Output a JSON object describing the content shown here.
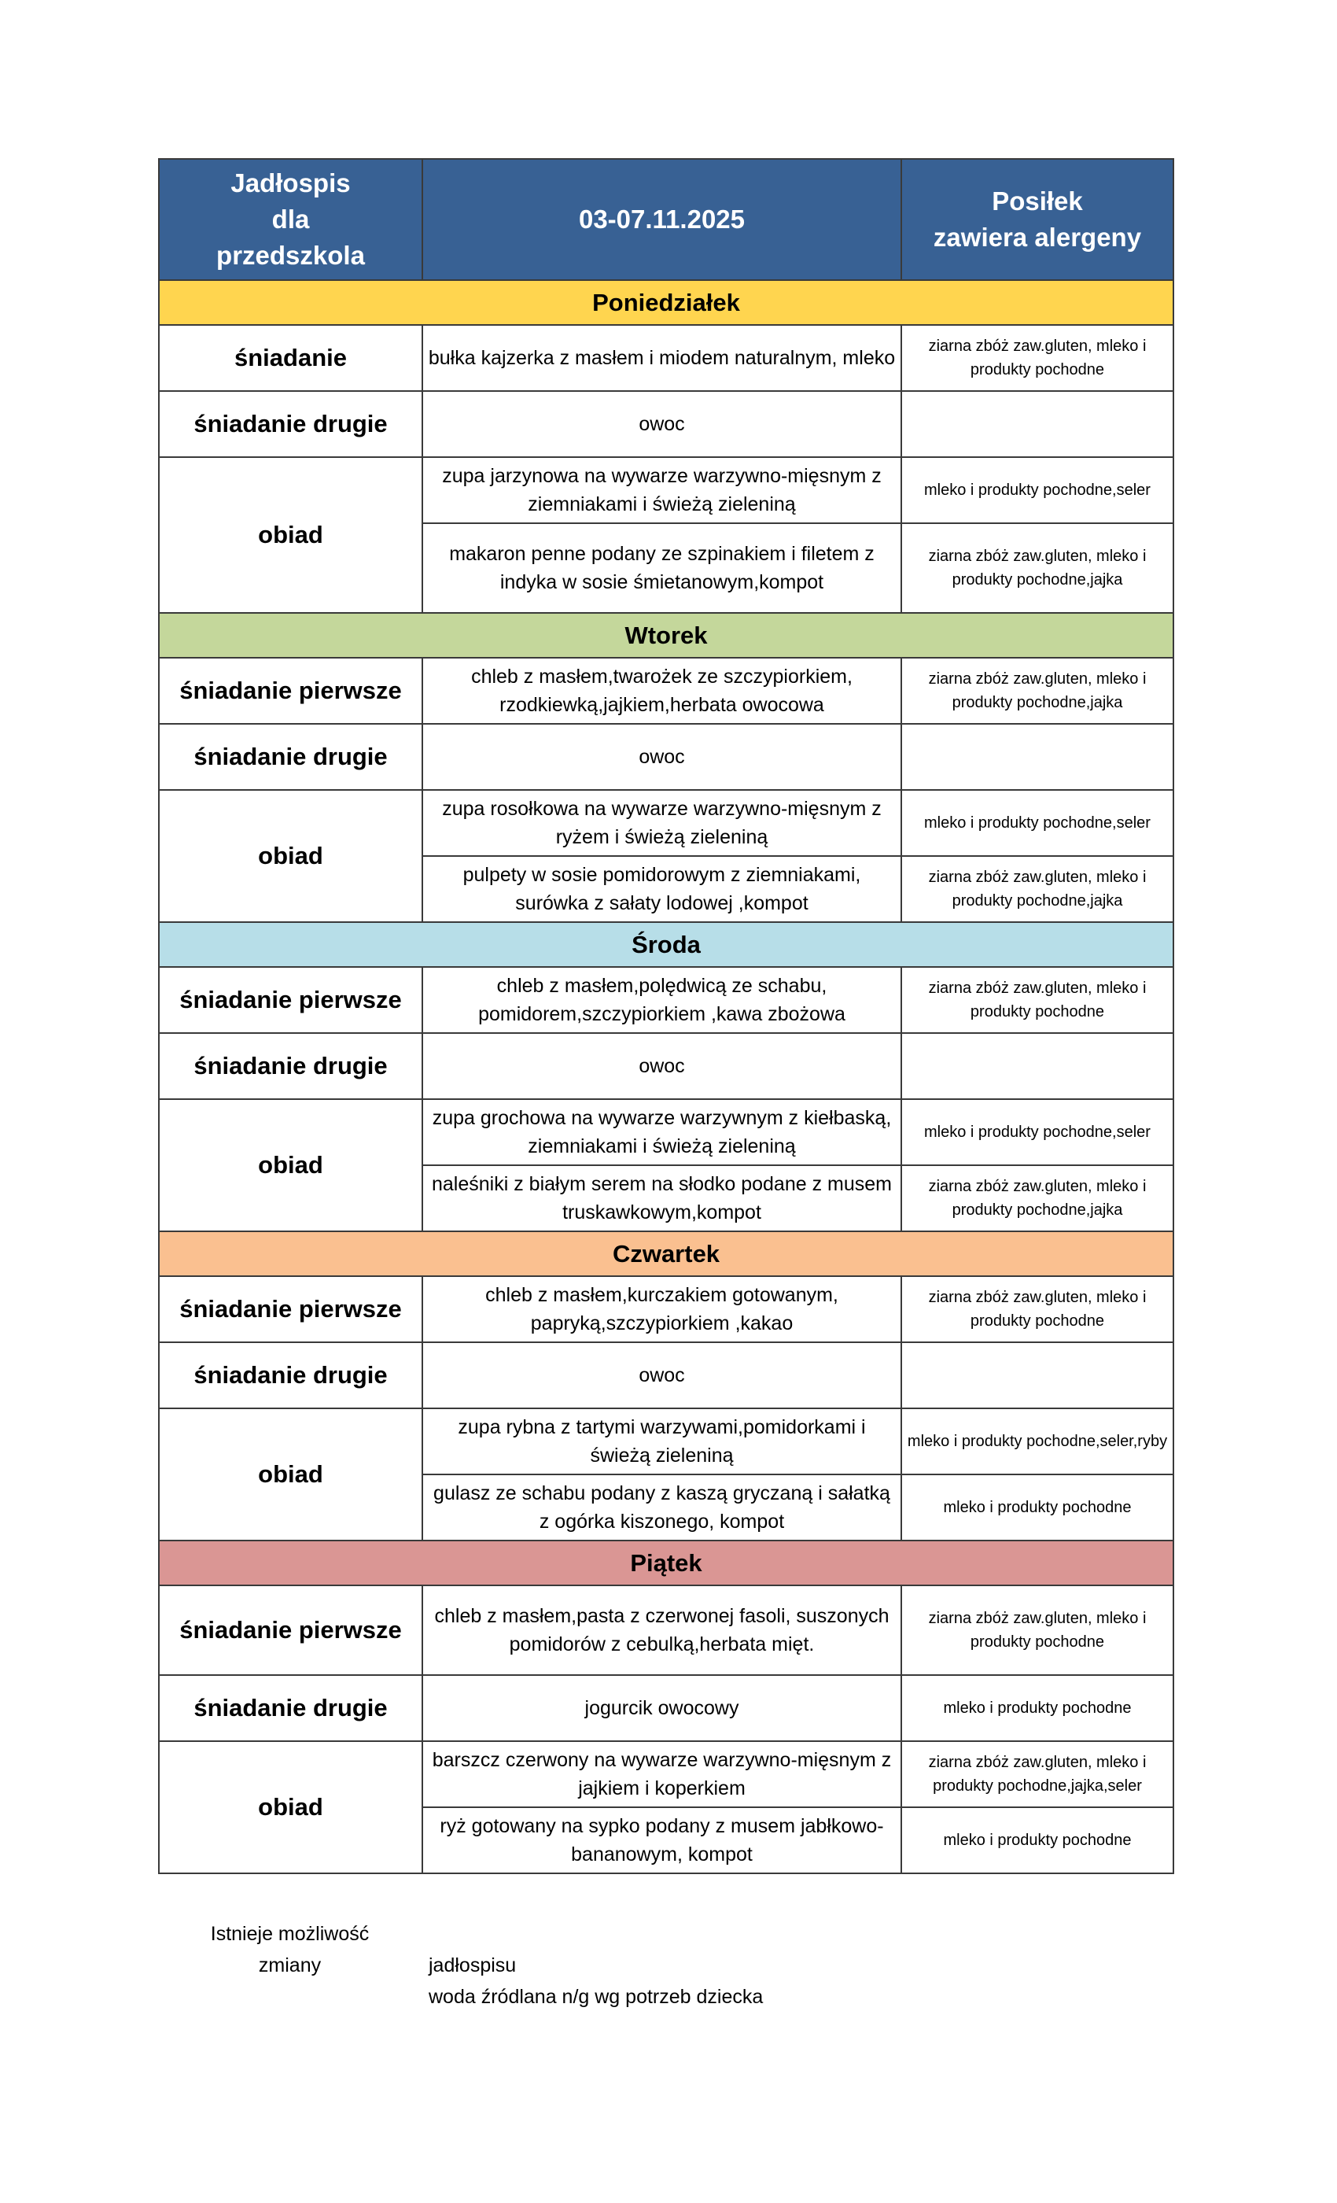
{
  "header": {
    "title": "Jadłospis dla przedszkola",
    "title_lines": [
      "Jadłospis",
      "dla",
      "przedszkola"
    ],
    "date_range": "03-07.11.2025",
    "allergens_title_lines": [
      "Posiłek",
      "zawiera alergeny"
    ]
  },
  "colors": {
    "header": "#386194",
    "poniedzialek": "#ffd54f",
    "wtorek": "#c4d79b",
    "sroda": "#b7dee8",
    "czwartek": "#fac090",
    "piatek": "#da9694"
  },
  "days": [
    {
      "name": "Poniedziałek",
      "color": "#ffd54f",
      "meals": [
        {
          "label": "śniadanie",
          "items": [
            {
              "dish": "bułka kajzerka z masłem i miodem naturalnym, mleko",
              "allergens": "ziarna zbóż zaw.gluten, mleko i produkty pochodne"
            }
          ]
        },
        {
          "label": "śniadanie drugie",
          "items": [
            {
              "dish": "owoc",
              "allergens": ""
            }
          ]
        },
        {
          "label": "obiad",
          "items": [
            {
              "dish": "zupa jarzynowa na wywarze warzywno-mięsnym z ziemniakami i świeżą zieleniną",
              "allergens": "mleko i produkty pochodne,seler"
            },
            {
              "dish": "makaron penne podany ze szpinakiem i filetem z indyka w sosie śmietanowym,kompot",
              "allergens": "ziarna zbóż zaw.gluten, mleko i produkty pochodne,jajka",
              "tall": true
            }
          ]
        }
      ]
    },
    {
      "name": "Wtorek",
      "color": "#c4d79b",
      "meals": [
        {
          "label": "śniadanie pierwsze",
          "items": [
            {
              "dish": "chleb z masłem,twarożek ze szczypiorkiem, rzodkiewką,jajkiem,herbata owocowa",
              "allergens": "ziarna zbóż zaw.gluten, mleko i produkty pochodne,jajka"
            }
          ]
        },
        {
          "label": "śniadanie drugie",
          "items": [
            {
              "dish": "owoc",
              "allergens": ""
            }
          ]
        },
        {
          "label": "obiad",
          "items": [
            {
              "dish": "zupa rosołkowa na wywarze warzywno-mięsnym z ryżem i świeżą zieleniną",
              "allergens": "mleko i produkty pochodne,seler"
            },
            {
              "dish": "pulpety w sosie pomidorowym z ziemniakami, surówka z sałaty lodowej ,kompot",
              "allergens": "ziarna zbóż zaw.gluten, mleko i produkty pochodne,jajka"
            }
          ]
        }
      ]
    },
    {
      "name": "Środa",
      "color": "#b7dee8",
      "meals": [
        {
          "label": "śniadanie pierwsze",
          "items": [
            {
              "dish": "chleb z masłem,polędwicą ze schabu, pomidorem,szczypiorkiem ,kawa zbożowa",
              "allergens": "ziarna zbóż zaw.gluten, mleko i produkty pochodne"
            }
          ]
        },
        {
          "label": "śniadanie drugie",
          "items": [
            {
              "dish": "owoc",
              "allergens": ""
            }
          ]
        },
        {
          "label": "obiad",
          "items": [
            {
              "dish": "zupa grochowa na wywarze warzywnym z kiełbaską, ziemniakami i świeżą zieleniną",
              "allergens": "mleko i produkty pochodne,seler"
            },
            {
              "dish": "naleśniki z białym serem na słodko podane z musem truskawkowym,kompot",
              "allergens": "ziarna zbóż zaw.gluten, mleko i produkty pochodne,jajka"
            }
          ]
        }
      ]
    },
    {
      "name": "Czwartek",
      "color": "#fac090",
      "meals": [
        {
          "label": "śniadanie pierwsze",
          "items": [
            {
              "dish": "chleb z masłem,kurczakiem gotowanym, papryką,szczypiorkiem ,kakao",
              "allergens": "ziarna zbóż zaw.gluten, mleko i produkty pochodne"
            }
          ]
        },
        {
          "label": "śniadanie drugie",
          "items": [
            {
              "dish": "owoc",
              "allergens": ""
            }
          ]
        },
        {
          "label": "obiad",
          "items": [
            {
              "dish": "zupa rybna z tartymi warzywami,pomidorkami i świeżą zieleniną",
              "allergens": "mleko i produkty pochodne,seler,ryby"
            },
            {
              "dish": "gulasz ze schabu podany z kaszą gryczaną i sałatką z ogórka kiszonego, kompot",
              "allergens": "mleko i produkty pochodne"
            }
          ]
        }
      ]
    },
    {
      "name": "Piątek",
      "color": "#da9694",
      "meals": [
        {
          "label": "śniadanie pierwsze",
          "items": [
            {
              "dish": "chleb z masłem,pasta z czerwonej fasoli, suszonych pomidorów z cebulką,herbata mięt.",
              "allergens": "ziarna zbóż zaw.gluten, mleko i produkty pochodne",
              "tall": true
            }
          ]
        },
        {
          "label": "śniadanie drugie",
          "items": [
            {
              "dish": "jogurcik owocowy",
              "allergens": "mleko i produkty pochodne"
            }
          ]
        },
        {
          "label": "obiad",
          "items": [
            {
              "dish": "barszcz czerwony na wywarze warzywno-mięsnym z jajkiem i koperkiem",
              "allergens": "ziarna zbóż zaw.gluten, mleko i produkty pochodne,jajka,seler"
            },
            {
              "dish": "ryż gotowany na sypko podany z musem jabłkowo-bananowym, kompot",
              "allergens": "mleko i produkty pochodne"
            }
          ]
        }
      ]
    }
  ],
  "notes": {
    "line1a": "Istnieje możliwość",
    "line1b": "zmiany",
    "line2": "jadłospisu",
    "line3": "woda źródlana n/g wg potrzeb dziecka"
  }
}
